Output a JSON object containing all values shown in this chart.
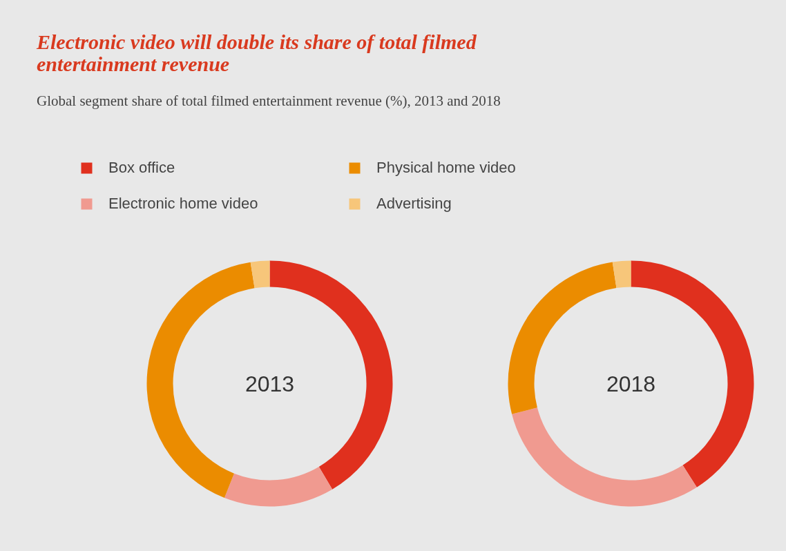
{
  "chart_data": {
    "type": "donut",
    "title": "Electronic video will double its share of total filmed entertainment revenue",
    "subtitle": "Global segment share of total filmed entertainment revenue (%), 2013 and 2018",
    "categories": [
      "Box office",
      "Electronic home video",
      "Physical home video",
      "Advertising"
    ],
    "colors": [
      "#e0301e",
      "#f09a90",
      "#eb8c00",
      "#f7c67a"
    ],
    "legend": "top left",
    "series": [
      {
        "name": "2013",
        "values": [
          41.5,
          14.5,
          41.5,
          2.5
        ]
      },
      {
        "name": "2018",
        "values": [
          41,
          30,
          26.6,
          2.4
        ]
      }
    ]
  }
}
